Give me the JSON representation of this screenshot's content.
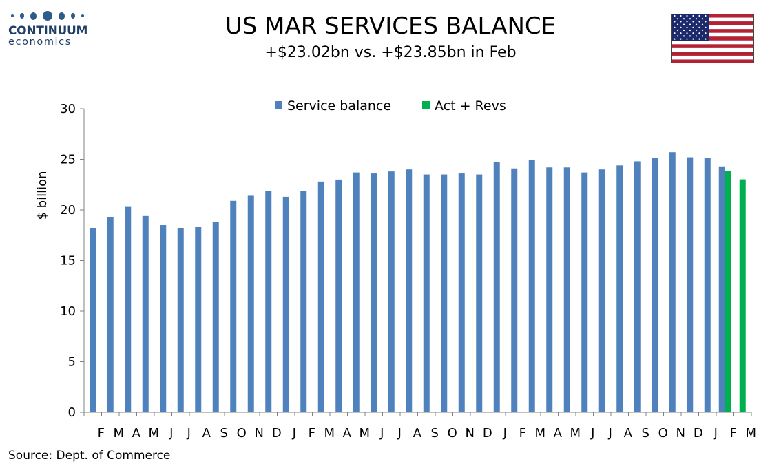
{
  "header": {
    "logo_name": "CONTINUUM",
    "logo_sub": "economics",
    "title": "US MAR SERVICES BALANCE",
    "subtitle": "+$23.02bn vs. +$23.85bn in Feb"
  },
  "flag_icon": "us-flag-icon",
  "footer": {
    "source": "Source: Dept. of Commerce"
  },
  "colors": {
    "service": "#4f81bd",
    "actrevs": "#00b050",
    "axis": "#808080",
    "logo": "#1f3f66"
  },
  "chart_data": {
    "type": "bar",
    "ylabel": "$ billion",
    "ylim": [
      0,
      30
    ],
    "yticks": [
      0,
      5,
      10,
      15,
      20,
      25,
      30
    ],
    "legend": "top-center",
    "grid": false,
    "categories": [
      "F",
      "M",
      "A",
      "M",
      "J",
      "J",
      "A",
      "S",
      "O",
      "N",
      "D",
      "J",
      "F",
      "M",
      "A",
      "M",
      "J",
      "J",
      "A",
      "S",
      "O",
      "N",
      "D",
      "J",
      "F",
      "M",
      "A",
      "M",
      "J",
      "J",
      "A",
      "S",
      "O",
      "N",
      "D",
      "J",
      "F",
      "M"
    ],
    "series": [
      {
        "name": "Service balance",
        "color": "#4f81bd",
        "values": [
          18.2,
          19.3,
          20.3,
          19.4,
          18.5,
          18.2,
          18.3,
          18.8,
          20.9,
          21.4,
          21.9,
          21.3,
          21.9,
          22.8,
          23.0,
          23.7,
          23.6,
          23.8,
          24.0,
          23.5,
          23.5,
          23.6,
          23.5,
          24.7,
          24.1,
          24.9,
          24.2,
          24.2,
          23.7,
          24.0,
          24.4,
          24.8,
          25.1,
          25.7,
          25.2,
          25.1,
          24.3,
          null
        ]
      },
      {
        "name": "Act + Revs",
        "color": "#00b050",
        "values": [
          null,
          null,
          null,
          null,
          null,
          null,
          null,
          null,
          null,
          null,
          null,
          null,
          null,
          null,
          null,
          null,
          null,
          null,
          null,
          null,
          null,
          null,
          null,
          null,
          null,
          null,
          null,
          null,
          null,
          null,
          null,
          null,
          null,
          null,
          null,
          null,
          23.85,
          23.02
        ]
      }
    ]
  }
}
